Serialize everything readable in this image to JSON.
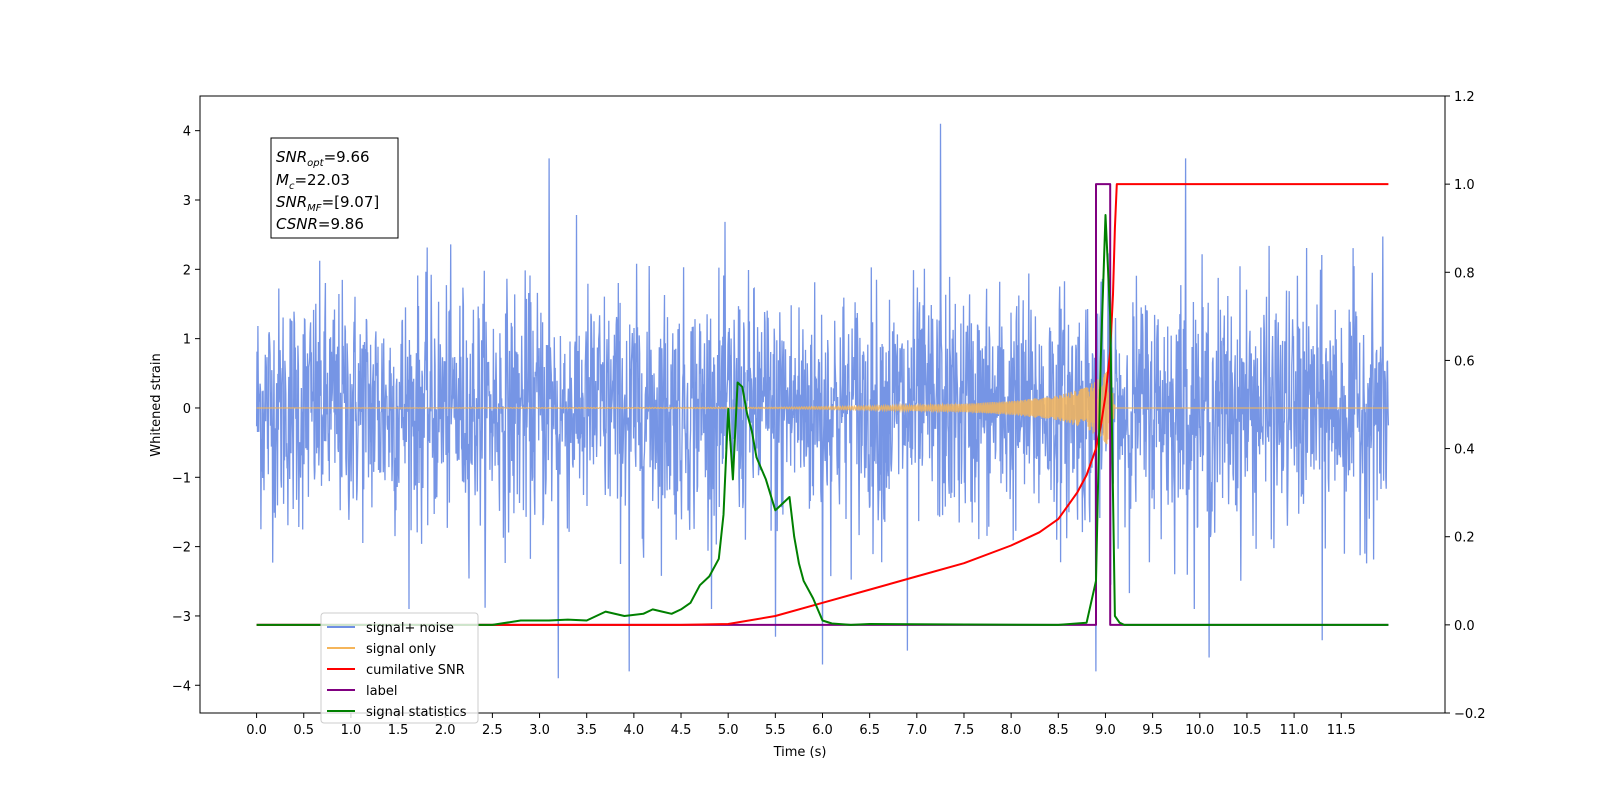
{
  "chart_data": {
    "type": "line",
    "title": "",
    "xlabel": "Time (s)",
    "ylabel": "Whitened strain",
    "y2label": "",
    "xlim": [
      -0.6,
      12.6
    ],
    "ylim": [
      -4.4,
      4.5
    ],
    "y2lim": [
      -0.2,
      1.2
    ],
    "x_ticks": [
      "0.0",
      "0.5",
      "1.0",
      "1.5",
      "2.0",
      "2.5",
      "3.0",
      "3.5",
      "4.0",
      "4.5",
      "5.0",
      "5.5",
      "6.0",
      "6.5",
      "7.0",
      "7.5",
      "8.0",
      "8.5",
      "9.0",
      "9.5",
      "10.0",
      "10.5",
      "11.0",
      "11.5"
    ],
    "y_ticks": [
      "4",
      "3",
      "2",
      "1",
      "0",
      "−1",
      "−2",
      "−3",
      "−4"
    ],
    "y2_ticks": [
      "1.2",
      "1.0",
      "0.8",
      "0.6",
      "0.4",
      "0.2",
      "0.0",
      "−0.2"
    ],
    "grid": false,
    "legend_position": "lower-left",
    "colors": {
      "signal_noise": "#6f8fe4",
      "signal_only": "#f5b55a",
      "cumulative_snr": "#ff0000",
      "label": "#800080",
      "signal_statistics": "#008000"
    },
    "annotation": {
      "snr_opt": "=9.66",
      "mc": "=22.03",
      "snr_mf": "=[9.07]",
      "csnr": "=9.86"
    },
    "series": [
      {
        "name": "signal+ noise",
        "axis": "left",
        "x_range": [
          0.0,
          12.0
        ],
        "y_range": [
          -3.9,
          4.1
        ],
        "peaks": [
          [
            3.1,
            3.6
          ],
          [
            7.25,
            4.1
          ],
          [
            9.85,
            3.6
          ],
          [
            3.2,
            -3.9
          ],
          [
            3.95,
            -3.8
          ],
          [
            8.9,
            -3.8
          ],
          [
            5.5,
            -3.3
          ],
          [
            6.0,
            -3.7
          ],
          [
            6.9,
            -3.5
          ],
          [
            10.1,
            -3.6
          ],
          [
            11.3,
            -3.35
          ]
        ]
      },
      {
        "name": "signal only",
        "axis": "left",
        "x": [
          0.0,
          5.5,
          6.5,
          7.5,
          8.0,
          8.5,
          8.8,
          9.0,
          9.05,
          9.1,
          12.0
        ],
        "amplitude": [
          0.0,
          0.01,
          0.03,
          0.06,
          0.1,
          0.18,
          0.3,
          0.5,
          0.6,
          0.0,
          0.0
        ]
      },
      {
        "name": "cumilative SNR",
        "axis": "right",
        "x": [
          0.0,
          4.5,
          5.0,
          5.5,
          6.0,
          6.5,
          7.0,
          7.5,
          8.0,
          8.3,
          8.5,
          8.6,
          8.7,
          8.8,
          8.9,
          8.95,
          9.0,
          9.05,
          9.08,
          9.1,
          9.12,
          12.0
        ],
        "values": [
          0.0,
          0.0,
          0.002,
          0.02,
          0.05,
          0.08,
          0.11,
          0.14,
          0.18,
          0.21,
          0.24,
          0.27,
          0.3,
          0.34,
          0.4,
          0.45,
          0.52,
          0.62,
          0.75,
          0.9,
          1.0,
          1.0
        ]
      },
      {
        "name": "label",
        "axis": "right",
        "x": [
          0.0,
          8.9,
          8.9,
          9.05,
          9.05,
          12.0
        ],
        "values": [
          0.0,
          0.0,
          1.0,
          1.0,
          0.0,
          0.0
        ]
      },
      {
        "name": "signal statistics",
        "axis": "right",
        "x": [
          0.0,
          2.5,
          2.8,
          3.1,
          3.3,
          3.5,
          3.7,
          3.9,
          4.1,
          4.2,
          4.3,
          4.4,
          4.5,
          4.6,
          4.7,
          4.8,
          4.9,
          4.95,
          5.0,
          5.05,
          5.1,
          5.15,
          5.2,
          5.25,
          5.3,
          5.4,
          5.5,
          5.55,
          5.65,
          5.7,
          5.75,
          5.8,
          5.9,
          6.0,
          6.1,
          6.3,
          6.5,
          8.5,
          8.8,
          8.9,
          8.95,
          9.0,
          9.05,
          9.1,
          9.15,
          9.2,
          12.0
        ],
        "values": [
          0.0,
          0.0,
          0.01,
          0.01,
          0.012,
          0.01,
          0.03,
          0.02,
          0.025,
          0.035,
          0.03,
          0.025,
          0.035,
          0.05,
          0.09,
          0.11,
          0.15,
          0.25,
          0.49,
          0.33,
          0.55,
          0.54,
          0.48,
          0.44,
          0.38,
          0.33,
          0.26,
          0.27,
          0.29,
          0.2,
          0.14,
          0.1,
          0.06,
          0.01,
          0.003,
          0.0,
          0.002,
          0.0,
          0.005,
          0.1,
          0.6,
          0.93,
          0.7,
          0.02,
          0.005,
          0.0,
          0.0
        ]
      }
    ],
    "legend": [
      {
        "label": "signal+ noise",
        "color": "#6f8fe4"
      },
      {
        "label": "signal only",
        "color": "#f5b55a"
      },
      {
        "label": "cumilative SNR",
        "color": "#ff0000"
      },
      {
        "label": "label",
        "color": "#800080"
      },
      {
        "label": "signal statistics",
        "color": "#008000"
      }
    ]
  }
}
